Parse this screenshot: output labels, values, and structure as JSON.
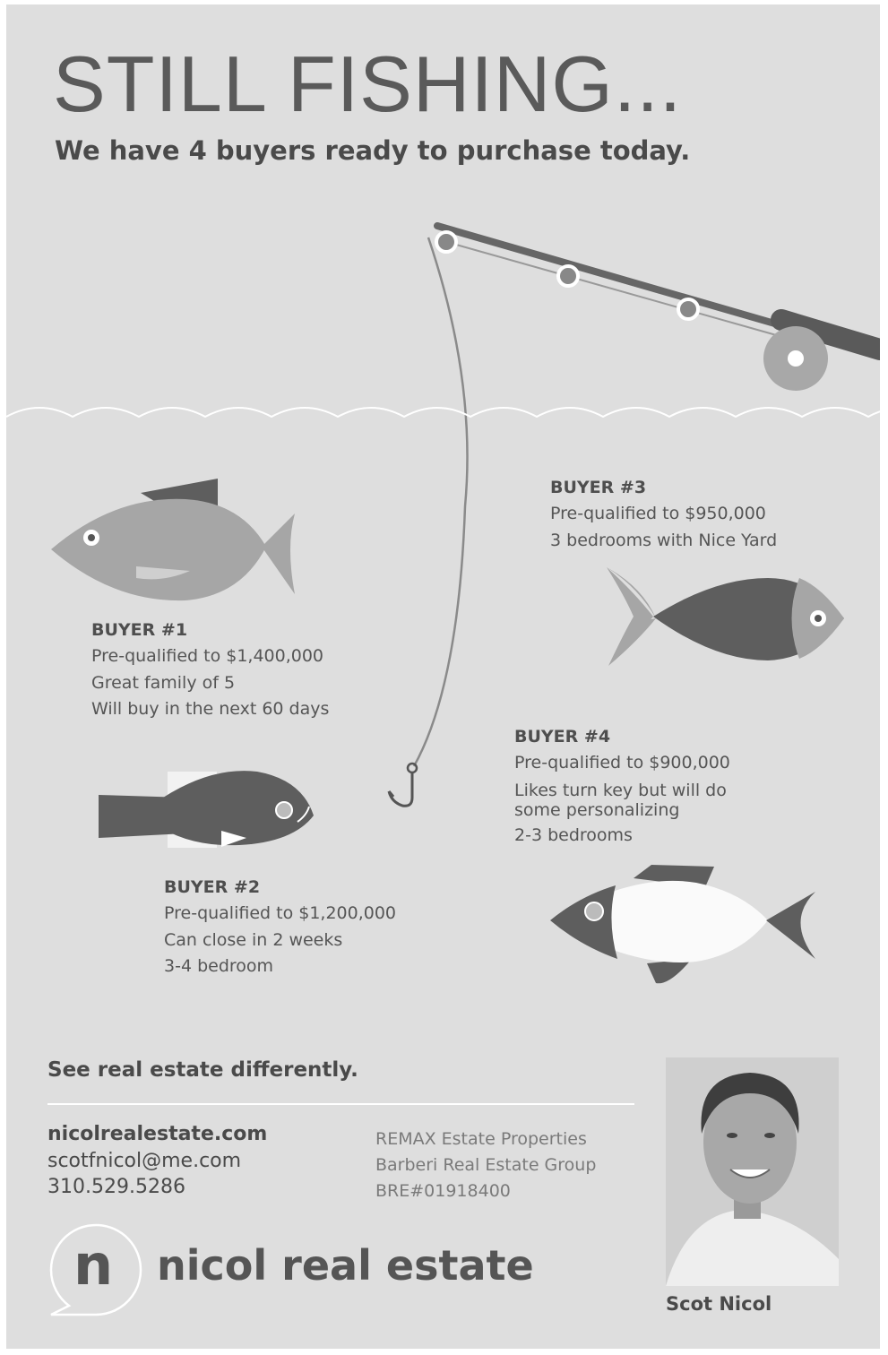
{
  "header": {
    "title": "STILL FISHING...",
    "subtitle": "We have 4 buyers ready to purchase today."
  },
  "buyers": [
    {
      "label": "BUYER #1",
      "lines": [
        "Pre-qualified to $1,400,000",
        "Great family of 5",
        "Will buy in the next 60 days"
      ]
    },
    {
      "label": "BUYER #2",
      "lines": [
        "Pre-qualified to $1,200,000",
        "Can close in 2 weeks",
        "3-4 bedroom"
      ]
    },
    {
      "label": "BUYER #3",
      "lines": [
        "Pre-qualified to $950,000",
        "3 bedrooms with Nice Yard"
      ]
    },
    {
      "label": "BUYER #4",
      "lines": [
        "Pre-qualified to $900,000",
        "Likes turn key but will do some personalizing",
        "2-3 bedrooms"
      ]
    }
  ],
  "footer": {
    "tagline": "See real estate differently.",
    "contact": [
      "nicolrealestate.com",
      "scotfnicol@me.com",
      "310.529.5286"
    ],
    "brokerage": [
      "REMAX Estate Properties",
      "Barberi Real Estate Group",
      "BRE#01918400"
    ],
    "logo_letter": "n",
    "logo_text": "nicol real estate",
    "agent_name": "Scot Nicol"
  }
}
